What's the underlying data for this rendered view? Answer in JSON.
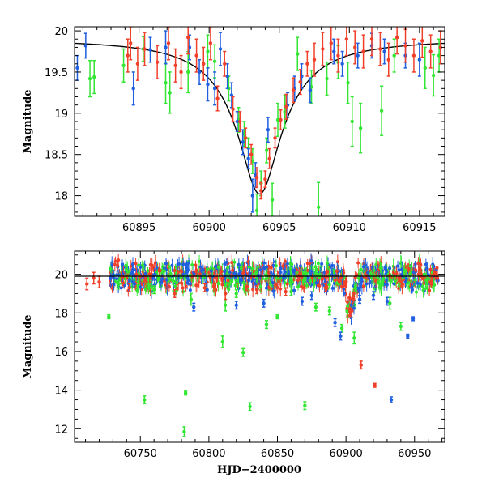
{
  "colors": {
    "green": "#33e633",
    "blue": "#1f5fe0",
    "red": "#f0402a",
    "model": "#000000"
  },
  "chart_data": [
    {
      "id": "top",
      "type": "scatter",
      "title": "",
      "xlabel": "",
      "ylabel": "Magnitude",
      "xlim": [
        60890.4,
        60916.8
      ],
      "ylim": [
        20.05,
        17.75
      ],
      "x_ticks": [
        60895,
        60900,
        60905,
        60910,
        60915
      ],
      "x_tick_labels": [
        "60895",
        "60900",
        "60905",
        "60910",
        "60915"
      ],
      "y_ticks": [
        18,
        18.5,
        19,
        19.5,
        20
      ],
      "y_tick_labels": [
        "18",
        "18.5",
        "19",
        "19.5",
        "20"
      ],
      "model_curve": {
        "name": "model",
        "form": "peak",
        "peak_x": 60903.6,
        "peak_mag": 18.02,
        "baseline_mag": 19.9,
        "width": 1.45
      },
      "series": [
        {
          "name": "green",
          "color": "#33e633",
          "points": [
            [
              60891.5,
              19.42,
              0.22
            ],
            [
              60891.8,
              19.44,
              0.2
            ],
            [
              60893.9,
              19.58,
              0.2
            ],
            [
              60895.3,
              19.78,
              0.15
            ],
            [
              60896.9,
              19.37,
              0.25
            ],
            [
              60897.2,
              19.25,
              0.25
            ],
            [
              60898.5,
              19.5,
              0.25
            ],
            [
              60899.9,
              19.75,
              0.2
            ],
            [
              60900.4,
              19.63,
              0.2
            ],
            [
              60901.4,
              19.3,
              0.15
            ],
            [
              60902.1,
              18.92,
              0.15
            ],
            [
              60902.5,
              18.75,
              0.15
            ],
            [
              60902.8,
              18.58,
              0.12
            ],
            [
              60903.1,
              18.42,
              0.15
            ],
            [
              60903.4,
              17.82,
              0.2
            ],
            [
              60903.7,
              18.15,
              0.15
            ],
            [
              60904.1,
              18.55,
              0.15
            ],
            [
              60904.5,
              17.95,
              0.2
            ],
            [
              60904.9,
              18.92,
              0.2
            ],
            [
              60905.4,
              19.02,
              0.2
            ],
            [
              60906.3,
              19.72,
              0.2
            ],
            [
              60907.3,
              19.32,
              0.2
            ],
            [
              60907.8,
              17.86,
              0.3
            ],
            [
              60908.4,
              19.42,
              0.2
            ],
            [
              60909.2,
              19.62,
              0.2
            ],
            [
              60909.9,
              19.37,
              0.25
            ],
            [
              60910.2,
              18.9,
              0.3
            ],
            [
              60910.8,
              18.82,
              0.3
            ],
            [
              60912.3,
              19.03,
              0.3
            ],
            [
              60913.2,
              19.7,
              0.2
            ],
            [
              60915.4,
              19.55,
              0.25
            ],
            [
              60916.0,
              19.46,
              0.25
            ],
            [
              60916.4,
              19.7,
              0.2
            ]
          ]
        },
        {
          "name": "blue",
          "color": "#1f5fe0",
          "points": [
            [
              60890.6,
              19.55,
              0.15
            ],
            [
              60891.2,
              19.82,
              0.15
            ],
            [
              60894.6,
              19.3,
              0.2
            ],
            [
              60895.8,
              19.77,
              0.15
            ],
            [
              60896.9,
              19.8,
              0.2
            ],
            [
              60898.6,
              19.8,
              0.15
            ],
            [
              60899.3,
              19.5,
              0.15
            ],
            [
              60899.9,
              19.35,
              0.2
            ],
            [
              60900.4,
              19.3,
              0.2
            ],
            [
              60900.8,
              19.78,
              0.2
            ],
            [
              60901.3,
              19.45,
              0.15
            ],
            [
              60901.6,
              19.22,
              0.15
            ],
            [
              60902.0,
              18.9,
              0.12
            ],
            [
              60902.4,
              18.65,
              0.15
            ],
            [
              60902.8,
              18.45,
              0.12
            ],
            [
              60903.1,
              18.0,
              0.2
            ],
            [
              60903.3,
              18.25,
              0.15
            ],
            [
              60904.2,
              18.8,
              0.15
            ],
            [
              60905.6,
              19.1,
              0.15
            ],
            [
              60906.1,
              19.3,
              0.15
            ],
            [
              60906.6,
              19.45,
              0.15
            ],
            [
              60907.2,
              19.28,
              0.15
            ],
            [
              60908.9,
              19.75,
              0.15
            ],
            [
              60909.5,
              19.6,
              0.15
            ],
            [
              60910.6,
              19.7,
              0.15
            ],
            [
              60911.6,
              19.82,
              0.15
            ],
            [
              60912.5,
              19.75,
              0.15
            ],
            [
              60914.0,
              19.7,
              0.15
            ],
            [
              60915.0,
              19.65,
              0.2
            ]
          ]
        },
        {
          "name": "red",
          "color": "#f0402a",
          "points": [
            [
              60894.2,
              19.7,
              0.2
            ],
            [
              60894.4,
              19.85,
              0.2
            ],
            [
              60894.9,
              19.6,
              0.2
            ],
            [
              60895.4,
              19.78,
              0.2
            ],
            [
              60896.3,
              19.62,
              0.2
            ],
            [
              60897.1,
              19.85,
              0.2
            ],
            [
              60897.6,
              19.58,
              0.2
            ],
            [
              60898.0,
              19.5,
              0.2
            ],
            [
              60898.5,
              19.92,
              0.2
            ],
            [
              60899.1,
              19.7,
              0.2
            ],
            [
              60899.6,
              19.6,
              0.2
            ],
            [
              60900.1,
              19.85,
              0.2
            ],
            [
              60900.6,
              19.18,
              0.15
            ],
            [
              60901.1,
              19.6,
              0.15
            ],
            [
              60901.7,
              19.05,
              0.15
            ],
            [
              60902.2,
              18.9,
              0.12
            ],
            [
              60902.6,
              18.7,
              0.12
            ],
            [
              60903.0,
              18.5,
              0.12
            ],
            [
              60903.4,
              18.22,
              0.12
            ],
            [
              60903.7,
              18.06,
              0.1
            ],
            [
              60904.0,
              18.2,
              0.1
            ],
            [
              60904.3,
              18.45,
              0.12
            ],
            [
              60904.7,
              18.7,
              0.12
            ],
            [
              60905.1,
              18.92,
              0.12
            ],
            [
              60905.5,
              19.08,
              0.15
            ],
            [
              60906.0,
              19.28,
              0.15
            ],
            [
              60906.5,
              19.38,
              0.15
            ],
            [
              60907.0,
              19.6,
              0.15
            ],
            [
              60907.5,
              19.65,
              0.2
            ],
            [
              60908.1,
              19.78,
              0.2
            ],
            [
              60908.7,
              19.85,
              0.2
            ],
            [
              60909.2,
              19.7,
              0.2
            ],
            [
              60909.8,
              19.9,
              0.2
            ],
            [
              60910.4,
              19.8,
              0.2
            ],
            [
              60911.0,
              19.75,
              0.2
            ],
            [
              60911.6,
              19.9,
              0.2
            ],
            [
              60912.2,
              19.78,
              0.2
            ],
            [
              60912.8,
              19.65,
              0.2
            ],
            [
              60913.4,
              19.92,
              0.2
            ],
            [
              60914.0,
              19.82,
              0.2
            ],
            [
              60914.6,
              19.7,
              0.2
            ],
            [
              60915.2,
              19.88,
              0.2
            ],
            [
              60915.8,
              19.75,
              0.2
            ],
            [
              60916.5,
              19.8,
              0.2
            ]
          ]
        }
      ]
    },
    {
      "id": "bottom",
      "type": "scatter",
      "title": "",
      "xlabel": "HJD−2400000",
      "ylabel": "Magnitude",
      "xlim": [
        60702,
        60972
      ],
      "ylim": [
        21.2,
        11.3
      ],
      "x_ticks": [
        60750,
        60800,
        60850,
        60900,
        60950
      ],
      "x_tick_labels": [
        "60750",
        "60800",
        "60850",
        "60900",
        "60950"
      ],
      "y_ticks": [
        12,
        14,
        16,
        18,
        20
      ],
      "y_tick_labels": [
        "12",
        "14",
        "16",
        "18",
        "20"
      ],
      "baseline_mag": 19.9,
      "series": [
        {
          "name": "green",
          "color": "#33e633",
          "points": [
            [
              60727,
              17.8,
              0.1
            ],
            [
              60753,
              13.5,
              0.2
            ],
            [
              60782,
              11.85,
              0.25
            ],
            [
              60783,
              13.85,
              0.1
            ],
            [
              60810,
              16.5,
              0.3
            ],
            [
              60830,
              13.15,
              0.2
            ],
            [
              60825,
              15.95,
              0.2
            ],
            [
              60842,
              17.4,
              0.2
            ],
            [
              60850,
              17.8,
              0.1
            ],
            [
              60870,
              13.2,
              0.2
            ],
            [
              60878,
              18.3,
              0.2
            ],
            [
              60888,
              18.1,
              0.2
            ],
            [
              60897,
              17.2,
              0.2
            ],
            [
              60906,
              16.7,
              0.3
            ],
            [
              60901,
              18.05,
              0.3
            ],
            [
              60787,
              18.7,
              0.3
            ],
            [
              60940,
              17.3,
              0.2
            ],
            [
              60932,
              18.5,
              0.3
            ],
            [
              60812,
              18.4,
              0.3
            ],
            [
              60760,
              19.2,
              0.2
            ],
            [
              60820,
              19.0,
              0.2
            ],
            [
              60860,
              19.1,
              0.2
            ]
          ]
        },
        {
          "name": "blue",
          "color": "#1f5fe0",
          "points": [
            [
              60933,
              13.5,
              0.15
            ],
            [
              60945,
              16.8,
              0.1
            ],
            [
              60949,
              17.7,
              0.1
            ],
            [
              60896,
              16.8,
              0.2
            ],
            [
              60892,
              17.5,
              0.2
            ],
            [
              60789,
              18.3,
              0.2
            ],
            [
              60820,
              18.4,
              0.2
            ],
            [
              60840,
              18.5,
              0.2
            ],
            [
              60868,
              18.6,
              0.2
            ],
            [
              60875,
              18.9,
              0.2
            ],
            [
              60910,
              18.7,
              0.2
            ],
            [
              60920,
              18.9,
              0.2
            ],
            [
              60930,
              18.6,
              0.2
            ]
          ]
        },
        {
          "name": "red",
          "color": "#f0402a",
          "points": [
            [
              60921,
              14.25,
              0.1
            ],
            [
              60911,
              15.3,
              0.2
            ],
            [
              60711,
              19.5,
              0.3
            ],
            [
              60716,
              19.8,
              0.3
            ],
            [
              60720,
              19.6,
              0.3
            ],
            [
              60742,
              19.3,
              0.2
            ],
            [
              60775,
              19.0,
              0.2
            ],
            [
              60797,
              19.3,
              0.2
            ],
            [
              60812,
              19.0,
              0.3
            ],
            [
              60835,
              19.2,
              0.2
            ],
            [
              60856,
              19.1,
              0.2
            ],
            [
              60885,
              19.3,
              0.2
            ],
            [
              60903,
              18.05,
              0.2
            ]
          ]
        }
      ]
    }
  ]
}
